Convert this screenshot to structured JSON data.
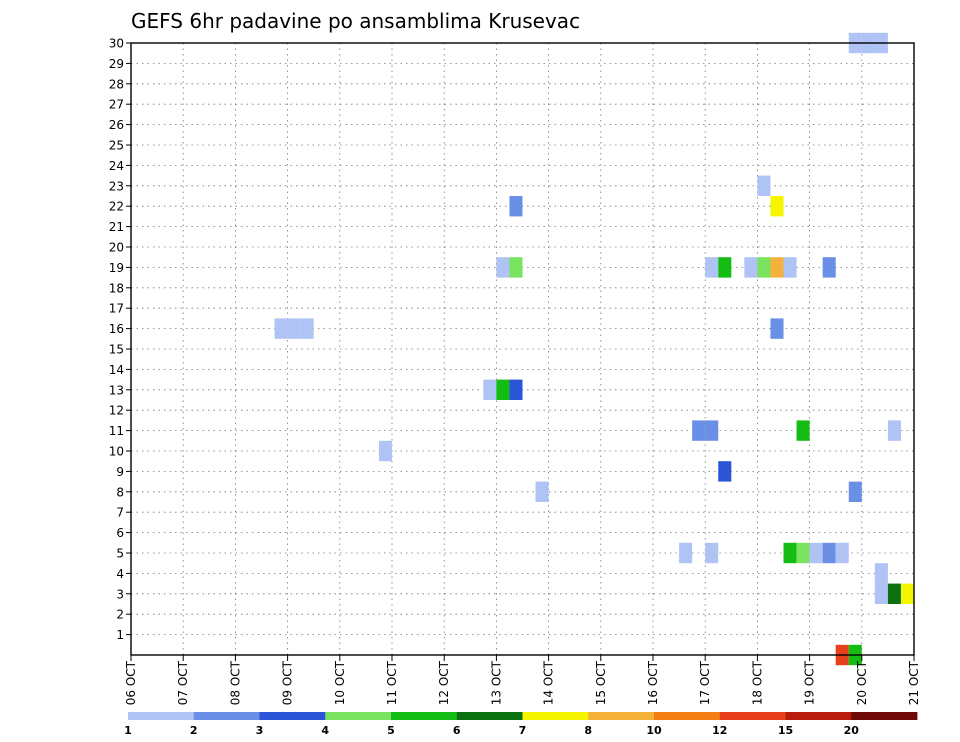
{
  "chart_data": {
    "type": "heatmap",
    "title": "GEFS 6hr padavine po ansamblima Krusevac",
    "xlabel": "",
    "ylabel": "",
    "x_ticks": [
      "06 OCT",
      "07 OCT",
      "08 OCT",
      "09 OCT",
      "10 OCT",
      "11 OCT",
      "12 OCT",
      "13 OCT",
      "14 OCT",
      "15 OCT",
      "16 OCT",
      "17 OCT",
      "18 OCT",
      "19 OCT",
      "20 OCT",
      "21 OCT"
    ],
    "y_ticks": [
      1,
      2,
      3,
      4,
      5,
      6,
      7,
      8,
      9,
      10,
      11,
      12,
      13,
      14,
      15,
      16,
      17,
      18,
      19,
      20,
      21,
      22,
      23,
      24,
      25,
      26,
      27,
      28,
      29,
      30
    ],
    "xlim": [
      "06 OCT 00Z",
      "21 OCT 00Z"
    ],
    "ylim": [
      0,
      30
    ],
    "grid": true,
    "legend_position": "bottom",
    "colorbar": {
      "labels": [
        "1",
        "2",
        "3",
        "4",
        "5",
        "6",
        "7",
        "8",
        "10",
        "12",
        "15",
        "20"
      ],
      "colors": [
        "#afc3f4",
        "#6a8fe6",
        "#2a55d6",
        "#79e360",
        "#14bd14",
        "#0a7010",
        "#f5f500",
        "#f5b23a",
        "#f57e14",
        "#e8401c",
        "#b81c0c",
        "#700a08"
      ]
    },
    "cells": [
      {
        "time": "08 OCT 18Z",
        "member": 16,
        "bin": 1
      },
      {
        "time": "09 OCT 00Z",
        "member": 16,
        "bin": 1
      },
      {
        "time": "09 OCT 06Z",
        "member": 16,
        "bin": 1
      },
      {
        "time": "10 OCT 18Z",
        "member": 10,
        "bin": 1
      },
      {
        "time": "12 OCT 18Z",
        "member": 13,
        "bin": 1
      },
      {
        "time": "13 OCT 00Z",
        "member": 13,
        "bin": 5
      },
      {
        "time": "13 OCT 06Z",
        "member": 13,
        "bin": 3
      },
      {
        "time": "13 OCT 00Z",
        "member": 19,
        "bin": 1
      },
      {
        "time": "13 OCT 06Z",
        "member": 19,
        "bin": 4
      },
      {
        "time": "13 OCT 06Z",
        "member": 22,
        "bin": 2
      },
      {
        "time": "13 OCT 18Z",
        "member": 8,
        "bin": 1
      },
      {
        "time": "16 OCT 12Z",
        "member": 5,
        "bin": 1
      },
      {
        "time": "17 OCT 00Z",
        "member": 5,
        "bin": 1
      },
      {
        "time": "16 OCT 18Z",
        "member": 11,
        "bin": 2
      },
      {
        "time": "17 OCT 00Z",
        "member": 11,
        "bin": 2
      },
      {
        "time": "17 OCT 06Z",
        "member": 9,
        "bin": 3
      },
      {
        "time": "17 OCT 00Z",
        "member": 19,
        "bin": 1
      },
      {
        "time": "17 OCT 06Z",
        "member": 19,
        "bin": 5
      },
      {
        "time": "17 OCT 18Z",
        "member": 19,
        "bin": 1
      },
      {
        "time": "18 OCT 00Z",
        "member": 19,
        "bin": 4
      },
      {
        "time": "18 OCT 06Z",
        "member": 19,
        "bin": 8
      },
      {
        "time": "18 OCT 12Z",
        "member": 19,
        "bin": 1
      },
      {
        "time": "18 OCT 00Z",
        "member": 23,
        "bin": 1
      },
      {
        "time": "18 OCT 06Z",
        "member": 22,
        "bin": 7
      },
      {
        "time": "18 OCT 06Z",
        "member": 16,
        "bin": 2
      },
      {
        "time": "19 OCT 06Z",
        "member": 19,
        "bin": 2
      },
      {
        "time": "18 OCT 18Z",
        "member": 11,
        "bin": 5
      },
      {
        "time": "18 OCT 12Z",
        "member": 5,
        "bin": 5
      },
      {
        "time": "18 OCT 18Z",
        "member": 5,
        "bin": 4
      },
      {
        "time": "19 OCT 00Z",
        "member": 5,
        "bin": 1
      },
      {
        "time": "19 OCT 06Z",
        "member": 5,
        "bin": 2
      },
      {
        "time": "19 OCT 12Z",
        "member": 5,
        "bin": 1
      },
      {
        "time": "19 OCT 18Z",
        "member": 8,
        "bin": 2
      },
      {
        "time": "19 OCT 12Z",
        "member": 0,
        "bin": 10
      },
      {
        "time": "19 OCT 18Z",
        "member": 0,
        "bin": 5
      },
      {
        "time": "19 OCT 18Z",
        "member": 30,
        "bin": 1
      },
      {
        "time": "20 OCT 00Z",
        "member": 30,
        "bin": 1
      },
      {
        "time": "20 OCT 06Z",
        "member": 30,
        "bin": 1
      },
      {
        "time": "20 OCT 06Z",
        "member": 3,
        "bin": 1
      },
      {
        "time": "20 OCT 06Z",
        "member": 4,
        "bin": 1
      },
      {
        "time": "20 OCT 12Z",
        "member": 3,
        "bin": 6
      },
      {
        "time": "20 OCT 18Z",
        "member": 3,
        "bin": 7
      },
      {
        "time": "20 OCT 12Z",
        "member": 11,
        "bin": 1
      }
    ]
  }
}
